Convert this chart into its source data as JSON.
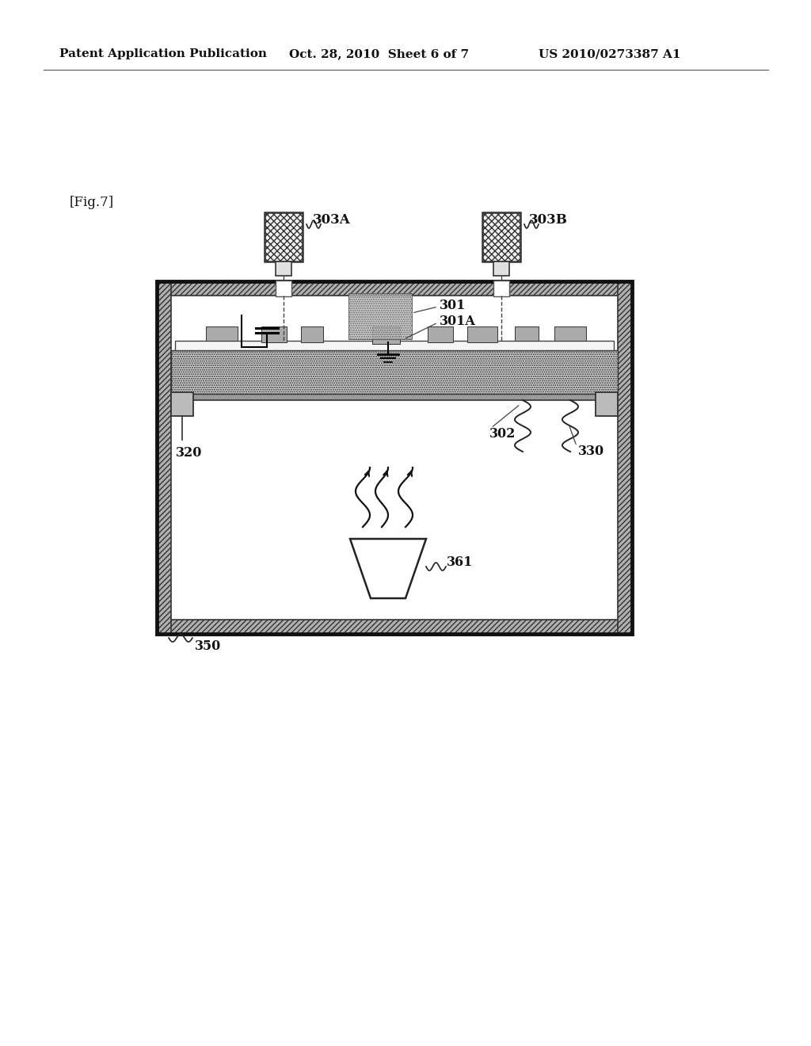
{
  "bg_color": "#ffffff",
  "header_text": "Patent Application Publication",
  "header_date": "Oct. 28, 2010  Sheet 6 of 7",
  "header_patent": "US 2010/0273387 A1",
  "fig_label": "[Fig.7]"
}
